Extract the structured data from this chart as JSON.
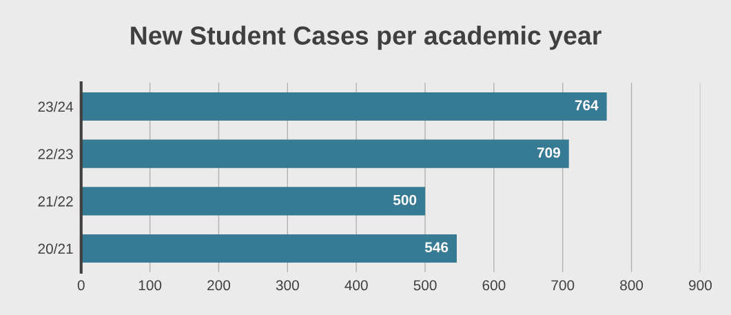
{
  "chart_data": {
    "type": "bar",
    "orientation": "horizontal",
    "title": "New Student Cases per academic year",
    "categories": [
      "23/24",
      "22/23",
      "21/22",
      "20/21"
    ],
    "values": [
      764,
      709,
      500,
      546
    ],
    "color": "#377a94",
    "xlim": [
      0,
      900
    ],
    "xticks": [
      0,
      100,
      200,
      300,
      400,
      500,
      600,
      700,
      800,
      900
    ],
    "grid": "x",
    "data_labels": true,
    "legend": false
  }
}
